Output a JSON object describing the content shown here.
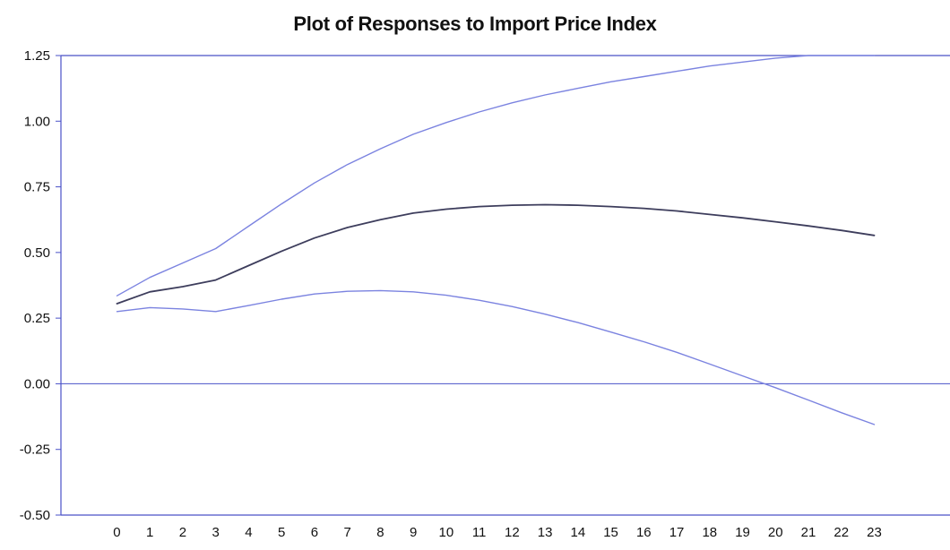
{
  "chart_data": {
    "type": "line",
    "title": "Plot of Responses to Import Price Index",
    "xlabel": "",
    "ylabel": "",
    "x": [
      0,
      1,
      2,
      3,
      4,
      5,
      6,
      7,
      8,
      9,
      10,
      11,
      12,
      13,
      14,
      15,
      16,
      17,
      18,
      19,
      20,
      21,
      22,
      23
    ],
    "x_tick_labels": [
      "0",
      "1",
      "2",
      "3",
      "4",
      "5",
      "6",
      "7",
      "8",
      "9",
      "10",
      "11",
      "12",
      "13",
      "14",
      "15",
      "16",
      "17",
      "18",
      "19",
      "20",
      "21",
      "22",
      "23"
    ],
    "y_ticks": [
      1.25,
      1.0,
      0.75,
      0.5,
      0.25,
      0.0,
      -0.25,
      -0.5
    ],
    "y_tick_labels": [
      "1.25",
      "1.00",
      "0.75",
      "0.50",
      "0.25",
      "0.00",
      "-0.25",
      "-0.50"
    ],
    "ylim": [
      -0.5,
      1.25
    ],
    "xlim": [
      -1.7,
      25.3
    ],
    "grid": false,
    "zero_line": true,
    "legend": "none",
    "series": [
      {
        "color": "#7b83e0",
        "values": [
          0.335,
          0.405,
          0.46,
          0.515,
          0.6,
          0.685,
          0.765,
          0.835,
          0.895,
          0.95,
          0.995,
          1.035,
          1.07,
          1.1,
          1.125,
          1.15,
          1.17,
          1.19,
          1.21,
          1.225,
          1.24,
          1.255,
          1.265,
          1.275
        ]
      },
      {
        "color": "#3d3d5c",
        "values": [
          0.305,
          0.35,
          0.37,
          0.395,
          0.45,
          0.505,
          0.555,
          0.595,
          0.625,
          0.65,
          0.665,
          0.675,
          0.68,
          0.682,
          0.68,
          0.675,
          0.668,
          0.658,
          0.645,
          0.632,
          0.617,
          0.601,
          0.584,
          0.565
        ]
      },
      {
        "color": "#7b83e0",
        "values": [
          0.275,
          0.29,
          0.285,
          0.275,
          0.298,
          0.322,
          0.342,
          0.352,
          0.355,
          0.35,
          0.337,
          0.318,
          0.294,
          0.265,
          0.233,
          0.197,
          0.16,
          0.12,
          0.075,
          0.03,
          -0.015,
          -0.062,
          -0.11,
          -0.155
        ]
      }
    ],
    "colors": {
      "axis": "#4a52c8",
      "band": "#7b83e0",
      "response": "#3d3d5c"
    }
  }
}
